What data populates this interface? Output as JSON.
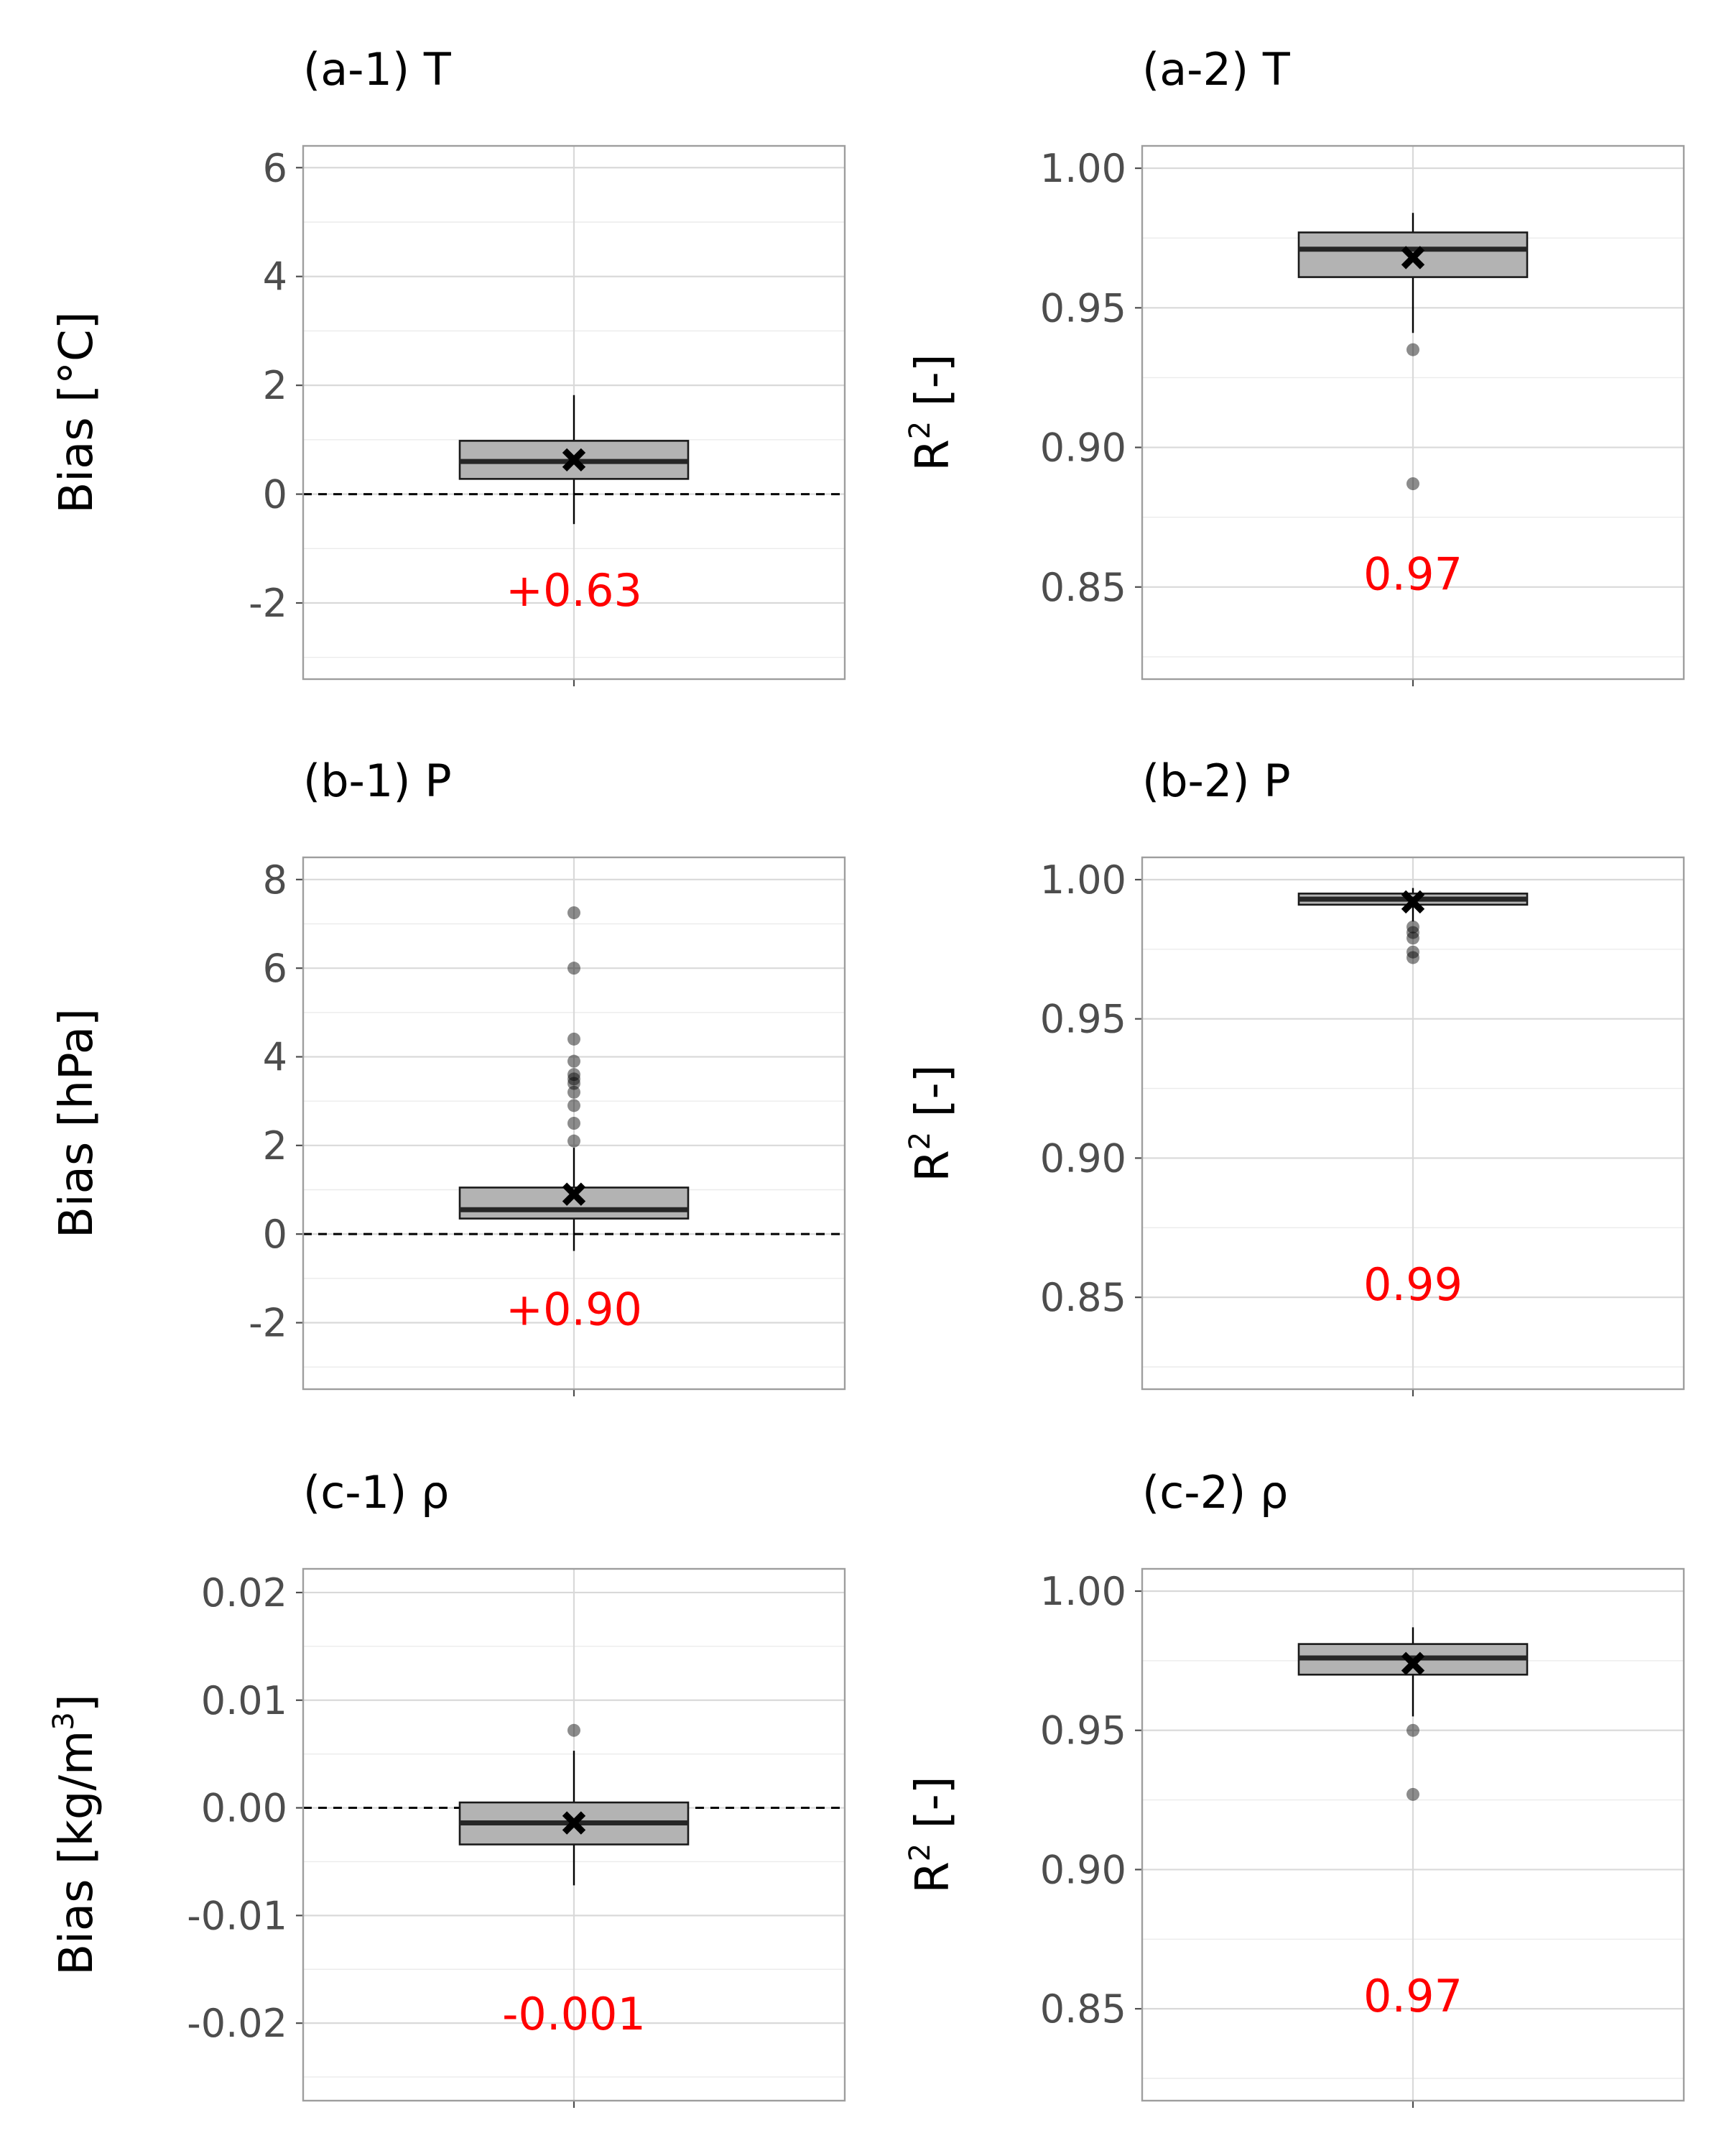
{
  "chart_data": [
    {
      "id": "a-1",
      "type": "box",
      "title": "(a-1) T",
      "ylabel": "Bias [°C]",
      "ylabel_superscript": "",
      "ylim": [
        -3.4,
        6.4
      ],
      "yticks": [
        -2,
        0,
        2,
        4,
        6
      ],
      "ytick_labels": [
        "-2",
        "0",
        "2",
        "4",
        "6"
      ],
      "zero_line": true,
      "box": {
        "q1": 0.28,
        "median": 0.6,
        "q3": 0.98,
        "whisker_low": -0.55,
        "whisker_high": 1.82
      },
      "mean": 0.63,
      "outliers": [],
      "annotation": "+0.63",
      "annotation_y": -2.05
    },
    {
      "id": "a-2",
      "type": "box",
      "title": "(a-2) T",
      "ylabel": "R",
      "ylabel_superscript": "2",
      "ylabel_suffix": " [-]",
      "ylim": [
        0.817,
        1.008
      ],
      "yticks": [
        0.85,
        0.9,
        0.95,
        1.0
      ],
      "ytick_labels": [
        "0.85",
        "0.90",
        "0.95",
        "1.00"
      ],
      "zero_line": false,
      "box": {
        "q1": 0.961,
        "median": 0.971,
        "q3": 0.977,
        "whisker_low": 0.941,
        "whisker_high": 0.984
      },
      "mean": 0.968,
      "outliers": [
        0.935,
        0.887
      ],
      "annotation": "0.97",
      "annotation_y": 0.849
    },
    {
      "id": "b-1",
      "type": "box",
      "title": "(b-1) P",
      "ylabel": "Bias [hPa]",
      "ylabel_superscript": "",
      "ylim": [
        -3.5,
        8.5
      ],
      "yticks": [
        -2,
        0,
        2,
        4,
        6,
        8
      ],
      "ytick_labels": [
        "-2",
        "0",
        "2",
        "4",
        "6",
        "8"
      ],
      "zero_line": true,
      "box": {
        "q1": 0.35,
        "median": 0.55,
        "q3": 1.05,
        "whisker_low": -0.38,
        "whisker_high": 1.95
      },
      "mean": 0.9,
      "outliers": [
        2.1,
        2.5,
        2.9,
        3.2,
        3.4,
        3.5,
        3.6,
        3.9,
        4.4,
        6.0,
        7.25
      ],
      "annotation": "+0.90",
      "annotation_y": -2.05
    },
    {
      "id": "b-2",
      "type": "box",
      "title": "(b-2) P",
      "ylabel": "R",
      "ylabel_superscript": "2",
      "ylabel_suffix": " [-]",
      "ylim": [
        0.817,
        1.008
      ],
      "yticks": [
        0.85,
        0.9,
        0.95,
        1.0
      ],
      "ytick_labels": [
        "0.85",
        "0.90",
        "0.95",
        "1.00"
      ],
      "zero_line": false,
      "box": {
        "q1": 0.991,
        "median": 0.993,
        "q3": 0.995,
        "whisker_low": 0.985,
        "whisker_high": 0.997
      },
      "mean": 0.992,
      "outliers": [
        0.983,
        0.981,
        0.979,
        0.974,
        0.972
      ],
      "annotation": "0.99",
      "annotation_y": 0.849
    },
    {
      "id": "c-1",
      "type": "box",
      "title": "(c-1) ρ",
      "ylabel": "Bias [kg/m",
      "ylabel_superscript": "3",
      "ylabel_suffix": "]",
      "ylim": [
        -0.0272,
        0.0222
      ],
      "yticks": [
        -0.02,
        -0.01,
        0.0,
        0.01,
        0.02
      ],
      "ytick_labels": [
        "-0.02",
        "-0.01",
        "0.00",
        "0.01",
        "0.02"
      ],
      "zero_line": true,
      "box": {
        "q1": -0.0034,
        "median": -0.0014,
        "q3": 0.0005,
        "whisker_low": -0.0072,
        "whisker_high": 0.0053
      },
      "mean": -0.0014,
      "outliers": [
        0.0072
      ],
      "annotation": "-0.001",
      "annotation_y": -0.0206
    },
    {
      "id": "c-2",
      "type": "box",
      "title": "(c-2) ρ",
      "ylabel": "R",
      "ylabel_superscript": "2",
      "ylabel_suffix": " [-]",
      "ylim": [
        0.817,
        1.008
      ],
      "yticks": [
        0.85,
        0.9,
        0.95,
        1.0
      ],
      "ytick_labels": [
        "0.85",
        "0.90",
        "0.95",
        "1.00"
      ],
      "zero_line": false,
      "box": {
        "q1": 0.97,
        "median": 0.976,
        "q3": 0.981,
        "whisker_low": 0.955,
        "whisker_high": 0.987
      },
      "mean": 0.974,
      "outliers": [
        0.95,
        0.927
      ],
      "annotation": "0.97",
      "annotation_y": 0.849
    }
  ]
}
